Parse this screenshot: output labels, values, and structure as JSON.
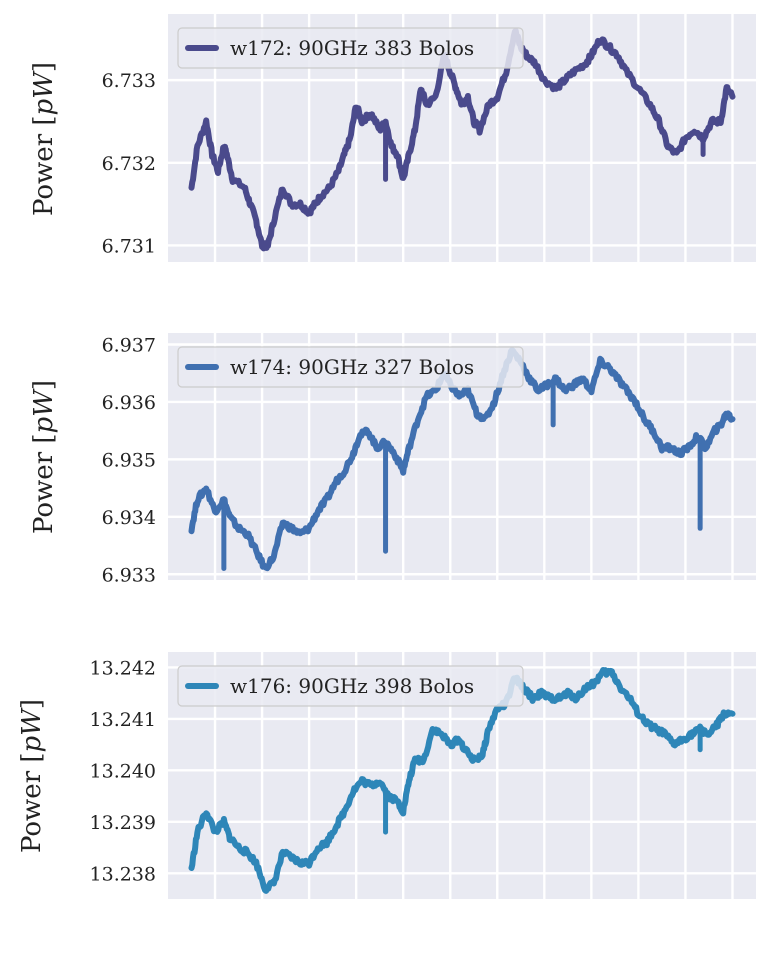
{
  "colors": {
    "plot_background": "#e9eaf2",
    "grid": "#ffffff",
    "legend_background": "#e9eaf2",
    "legend_border": "#cccccc"
  },
  "chart_data": [
    {
      "type": "line",
      "ylabel": "Power [pW]",
      "ylabel_parts": {
        "text": "Power ",
        "unit": "pW"
      },
      "ylim": [
        6.7308,
        6.7338
      ],
      "yticks": [
        6.731,
        6.732,
        6.733
      ],
      "ytick_labels": [
        "6.731",
        "6.732",
        "6.733"
      ],
      "xlim": [
        0,
        1
      ],
      "xgrid": [
        0.08,
        0.16,
        0.24,
        0.32,
        0.4,
        0.48,
        0.56,
        0.64,
        0.72,
        0.8,
        0.88,
        0.96
      ],
      "grid": true,
      "legend_position": "upper-left",
      "series": [
        {
          "name": "w172: 90GHz 383 Bolos",
          "color": "#4a4a8c",
          "spikes": [
            [
              0.37,
              6.7318
            ],
            [
              0.91,
              6.7321
            ]
          ],
          "points": [
            [
              0.04,
              6.7317
            ],
            [
              0.05,
              6.7322
            ],
            [
              0.065,
              6.7325
            ],
            [
              0.075,
              6.7321
            ],
            [
              0.085,
              6.7319
            ],
            [
              0.095,
              6.7322
            ],
            [
              0.1,
              6.7321
            ],
            [
              0.11,
              6.7318
            ],
            [
              0.13,
              6.7317
            ],
            [
              0.14,
              6.7315
            ],
            [
              0.15,
              6.7313
            ],
            [
              0.16,
              6.731
            ],
            [
              0.17,
              6.731
            ],
            [
              0.18,
              6.7313
            ],
            [
              0.195,
              6.7317
            ],
            [
              0.21,
              6.7315
            ],
            [
              0.225,
              6.7315
            ],
            [
              0.24,
              6.7314
            ],
            [
              0.25,
              6.7315
            ],
            [
              0.26,
              6.7316
            ],
            [
              0.275,
              6.7317
            ],
            [
              0.29,
              6.7319
            ],
            [
              0.3,
              6.7321
            ],
            [
              0.31,
              6.7323
            ],
            [
              0.32,
              6.7327
            ],
            [
              0.33,
              6.7325
            ],
            [
              0.345,
              6.7326
            ],
            [
              0.36,
              6.7324
            ],
            [
              0.37,
              6.7325
            ],
            [
              0.38,
              6.7322
            ],
            [
              0.39,
              6.7321
            ],
            [
              0.4,
              6.7318
            ],
            [
              0.41,
              6.7321
            ],
            [
              0.42,
              6.7324
            ],
            [
              0.43,
              6.7329
            ],
            [
              0.44,
              6.7327
            ],
            [
              0.455,
              6.7328
            ],
            [
              0.47,
              6.7333
            ],
            [
              0.48,
              6.7331
            ],
            [
              0.49,
              6.7329
            ],
            [
              0.5,
              6.7327
            ],
            [
              0.51,
              6.7328
            ],
            [
              0.52,
              6.7325
            ],
            [
              0.53,
              6.7324
            ],
            [
              0.545,
              6.7327
            ],
            [
              0.56,
              6.7328
            ],
            [
              0.575,
              6.7331
            ],
            [
              0.59,
              6.7336
            ],
            [
              0.6,
              6.7334
            ],
            [
              0.61,
              6.7333
            ],
            [
              0.625,
              6.7332
            ],
            [
              0.64,
              6.733
            ],
            [
              0.66,
              6.7329
            ],
            [
              0.675,
              6.733
            ],
            [
              0.69,
              6.7331
            ],
            [
              0.71,
              6.7332
            ],
            [
              0.72,
              6.7333
            ],
            [
              0.735,
              6.7335
            ],
            [
              0.75,
              6.7334
            ],
            [
              0.765,
              6.7333
            ],
            [
              0.78,
              6.7331
            ],
            [
              0.8,
              6.7329
            ],
            [
              0.82,
              6.7327
            ],
            [
              0.835,
              6.7325
            ],
            [
              0.85,
              6.7322
            ],
            [
              0.865,
              6.7321
            ],
            [
              0.88,
              6.7323
            ],
            [
              0.895,
              6.7324
            ],
            [
              0.91,
              6.7323
            ],
            [
              0.925,
              6.7325
            ],
            [
              0.94,
              6.7325
            ],
            [
              0.95,
              6.7329
            ],
            [
              0.96,
              6.7328
            ]
          ]
        }
      ]
    },
    {
      "type": "line",
      "ylabel": "Power [pW]",
      "ylabel_parts": {
        "text": "Power ",
        "unit": "pW"
      },
      "ylim": [
        6.9329,
        6.9372
      ],
      "yticks": [
        6.933,
        6.934,
        6.935,
        6.936,
        6.937
      ],
      "ytick_labels": [
        "6.933",
        "6.934",
        "6.935",
        "6.936",
        "6.937"
      ],
      "xlim": [
        0,
        1
      ],
      "xgrid": [
        0.08,
        0.16,
        0.24,
        0.32,
        0.4,
        0.48,
        0.56,
        0.64,
        0.72,
        0.8,
        0.88,
        0.96
      ],
      "grid": true,
      "legend_position": "upper-left",
      "series": [
        {
          "name": "w174: 90GHz 327 Bolos",
          "color": "#4070b0",
          "spikes": [
            [
              0.095,
              6.9331
            ],
            [
              0.37,
              6.9334
            ],
            [
              0.655,
              6.9356
            ],
            [
              0.905,
              6.9338
            ]
          ],
          "points": [
            [
              0.04,
              6.9338
            ],
            [
              0.05,
              6.9343
            ],
            [
              0.065,
              6.9345
            ],
            [
              0.08,
              6.9341
            ],
            [
              0.095,
              6.9343
            ],
            [
              0.105,
              6.934
            ],
            [
              0.12,
              6.9338
            ],
            [
              0.135,
              6.9337
            ],
            [
              0.15,
              6.9334
            ],
            [
              0.165,
              6.9331
            ],
            [
              0.18,
              6.9333
            ],
            [
              0.195,
              6.9339
            ],
            [
              0.21,
              6.9338
            ],
            [
              0.225,
              6.9337
            ],
            [
              0.24,
              6.9338
            ],
            [
              0.255,
              6.9341
            ],
            [
              0.27,
              6.9343
            ],
            [
              0.285,
              6.9346
            ],
            [
              0.3,
              6.9348
            ],
            [
              0.315,
              6.9351
            ],
            [
              0.325,
              6.9354
            ],
            [
              0.34,
              6.9355
            ],
            [
              0.355,
              6.9352
            ],
            [
              0.37,
              6.9353
            ],
            [
              0.385,
              6.9351
            ],
            [
              0.4,
              6.9348
            ],
            [
              0.41,
              6.9352
            ],
            [
              0.425,
              6.9357
            ],
            [
              0.44,
              6.9361
            ],
            [
              0.455,
              6.9362
            ],
            [
              0.47,
              6.9365
            ],
            [
              0.48,
              6.9363
            ],
            [
              0.495,
              6.9361
            ],
            [
              0.51,
              6.9362
            ],
            [
              0.525,
              6.9358
            ],
            [
              0.54,
              6.9357
            ],
            [
              0.555,
              6.936
            ],
            [
              0.57,
              6.9365
            ],
            [
              0.585,
              6.9369
            ],
            [
              0.6,
              6.9367
            ],
            [
              0.615,
              6.9364
            ],
            [
              0.63,
              6.9362
            ],
            [
              0.645,
              6.9363
            ],
            [
              0.66,
              6.9364
            ],
            [
              0.675,
              6.9362
            ],
            [
              0.69,
              6.9363
            ],
            [
              0.705,
              6.9364
            ],
            [
              0.72,
              6.9362
            ],
            [
              0.735,
              6.9367
            ],
            [
              0.75,
              6.9366
            ],
            [
              0.765,
              6.9364
            ],
            [
              0.78,
              6.9362
            ],
            [
              0.795,
              6.936
            ],
            [
              0.81,
              6.9357
            ],
            [
              0.825,
              6.9355
            ],
            [
              0.84,
              6.9352
            ],
            [
              0.855,
              6.9352
            ],
            [
              0.87,
              6.9351
            ],
            [
              0.885,
              6.9352
            ],
            [
              0.9,
              6.9354
            ],
            [
              0.915,
              6.9352
            ],
            [
              0.93,
              6.9355
            ],
            [
              0.94,
              6.9356
            ],
            [
              0.95,
              6.9358
            ],
            [
              0.96,
              6.9357
            ]
          ]
        }
      ]
    },
    {
      "type": "line",
      "ylabel": "Power [pW]",
      "ylabel_parts": {
        "text": "Power ",
        "unit": "pW"
      },
      "ylim": [
        13.2375,
        13.2423
      ],
      "yticks": [
        13.238,
        13.239,
        13.24,
        13.241,
        13.242
      ],
      "ytick_labels": [
        "13.238",
        "13.239",
        "13.240",
        "13.241",
        "13.242"
      ],
      "xlim": [
        0,
        1
      ],
      "xgrid": [
        0.08,
        0.16,
        0.24,
        0.32,
        0.4,
        0.48,
        0.56,
        0.64,
        0.72,
        0.8,
        0.88,
        0.96
      ],
      "grid": true,
      "legend_position": "upper-left",
      "series": [
        {
          "name": "w176: 90GHz 398 Bolos",
          "color": "#2e86b8",
          "spikes": [
            [
              0.37,
              13.2388
            ],
            [
              0.905,
              13.2404
            ]
          ],
          "points": [
            [
              0.04,
              13.2381
            ],
            [
              0.05,
              13.2388
            ],
            [
              0.065,
              13.2392
            ],
            [
              0.08,
              13.2388
            ],
            [
              0.095,
              13.239
            ],
            [
              0.105,
              13.2387
            ],
            [
              0.12,
              13.2385
            ],
            [
              0.135,
              13.2384
            ],
            [
              0.15,
              13.2382
            ],
            [
              0.165,
              13.2377
            ],
            [
              0.18,
              13.2378
            ],
            [
              0.195,
              13.2384
            ],
            [
              0.21,
              13.2383
            ],
            [
              0.225,
              13.2382
            ],
            [
              0.24,
              13.2382
            ],
            [
              0.255,
              13.2385
            ],
            [
              0.27,
              13.2386
            ],
            [
              0.285,
              13.2389
            ],
            [
              0.3,
              13.2392
            ],
            [
              0.315,
              13.2396
            ],
            [
              0.33,
              13.2398
            ],
            [
              0.345,
              13.2397
            ],
            [
              0.36,
              13.2398
            ],
            [
              0.375,
              13.2395
            ],
            [
              0.39,
              13.2394
            ],
            [
              0.4,
              13.2392
            ],
            [
              0.41,
              13.2398
            ],
            [
              0.42,
              13.2402
            ],
            [
              0.435,
              13.2402
            ],
            [
              0.45,
              13.2408
            ],
            [
              0.465,
              13.2407
            ],
            [
              0.48,
              13.2405
            ],
            [
              0.495,
              13.2406
            ],
            [
              0.505,
              13.2404
            ],
            [
              0.52,
              13.2402
            ],
            [
              0.535,
              13.2403
            ],
            [
              0.545,
              13.2408
            ],
            [
              0.56,
              13.2412
            ],
            [
              0.575,
              13.2413
            ],
            [
              0.59,
              13.2418
            ],
            [
              0.605,
              13.2416
            ],
            [
              0.62,
              13.2414
            ],
            [
              0.635,
              13.2415
            ],
            [
              0.65,
              13.2414
            ],
            [
              0.665,
              13.2414
            ],
            [
              0.68,
              13.2415
            ],
            [
              0.695,
              13.2414
            ],
            [
              0.71,
              13.2416
            ],
            [
              0.725,
              13.2417
            ],
            [
              0.74,
              13.2419
            ],
            [
              0.755,
              13.2419
            ],
            [
              0.77,
              13.2416
            ],
            [
              0.785,
              13.2414
            ],
            [
              0.8,
              13.2411
            ],
            [
              0.815,
              13.2409
            ],
            [
              0.83,
              13.2408
            ],
            [
              0.845,
              13.2407
            ],
            [
              0.86,
              13.2405
            ],
            [
              0.875,
              13.2406
            ],
            [
              0.89,
              13.2407
            ],
            [
              0.905,
              13.2408
            ],
            [
              0.92,
              13.2407
            ],
            [
              0.935,
              13.2409
            ],
            [
              0.945,
              13.2411
            ],
            [
              0.96,
              13.2411
            ]
          ]
        }
      ]
    }
  ]
}
